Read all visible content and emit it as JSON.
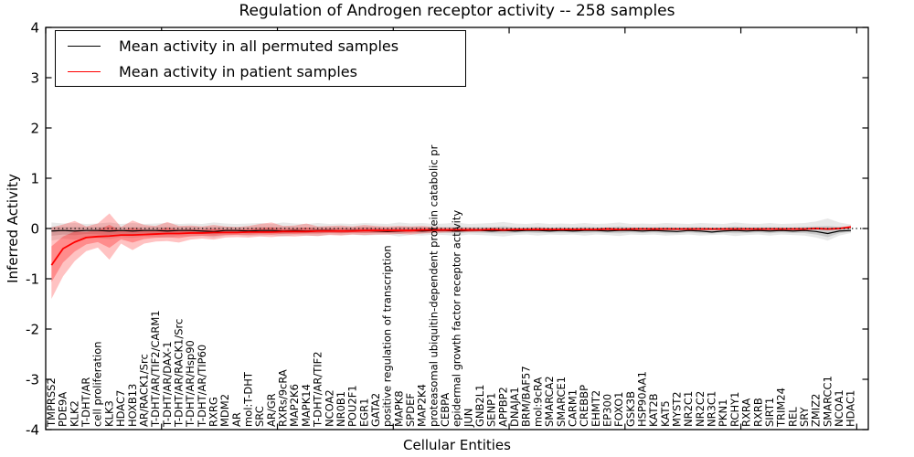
{
  "chart_data": {
    "type": "line",
    "title": "Regulation of Androgen receptor activity -- 258 samples",
    "xlabel": "Cellular Entities",
    "ylabel": "Inferred Activity",
    "ylim": [
      -4,
      4
    ],
    "xlim": [
      0,
      71
    ],
    "y_ticks": [
      -4,
      -3,
      -2,
      -1,
      0,
      1,
      2,
      3,
      4
    ],
    "x_major_tick_step": 10,
    "grid": false,
    "zero_reference_line": 0,
    "legend_position": "upper left",
    "categories": [
      "TMPRSS2",
      "PDE9A",
      "KLK2",
      "T-DHT/AR",
      "cell proliferation",
      "KLK3",
      "HDAC7",
      "HOXB13",
      "AR/RACK1/Src",
      "T-DHT/AR/TIF2/CARM1",
      "T-DHT/AR/DAX-1",
      "T-DHT/AR/RACK1/Src",
      "T-DHT/AR/Hsp90",
      "T-DHT/AR/TIP60",
      "RXRG",
      "MDM2",
      "AR",
      "mol:T-DHT",
      "SRC",
      "AR/GR",
      "RXRs/9cRA",
      "MAP2K6",
      "MAPK14",
      "T-DHT/AR/TIF2",
      "NCOA2",
      "NR0B1",
      "POU2F1",
      "EGR1",
      "GATA2",
      "positive regulation of transcription",
      "MAPK8",
      "SPDEF",
      "MAP2K4",
      "proteasomal ubiquitin-dependent protein catabolic pr",
      "CEBPA",
      "epidermal growth factor receptor activity",
      "JUN",
      "GNB2L1",
      "SENP1",
      "APPBP2",
      "DNAJA1",
      "BRM/BAF57",
      "mol:9cRA",
      "SMARCA2",
      "SMARCE1",
      "CARM1",
      "CREBBP",
      "EHMT2",
      "EP300",
      "FOXO1",
      "GSK3B",
      "HSP90AA1",
      "KAT2B",
      "KAT5",
      "MYST2",
      "NR2C1",
      "NR2C2",
      "NR3C1",
      "PKN1",
      "RCHY1",
      "RXRA",
      "RXRB",
      "SIRT1",
      "TRIM24",
      "REL",
      "SRY",
      "ZMIZ2",
      "SMARCC1",
      "NCOA1",
      "HDAC1"
    ],
    "series": [
      {
        "name": "Mean activity in all permuted samples",
        "color": "#000000",
        "band_color_rgb": "0,0,0",
        "band_alpha": 0.09,
        "line_width": 1.2,
        "mean": [
          -0.05,
          -0.04,
          -0.05,
          -0.04,
          -0.04,
          -0.05,
          -0.04,
          -0.05,
          -0.04,
          -0.04,
          -0.05,
          -0.04,
          -0.04,
          -0.05,
          -0.06,
          -0.04,
          -0.04,
          -0.05,
          -0.04,
          -0.04,
          -0.05,
          -0.04,
          -0.05,
          -0.04,
          -0.04,
          -0.05,
          -0.04,
          -0.04,
          -0.05,
          -0.06,
          -0.05,
          -0.04,
          -0.05,
          -0.04,
          -0.04,
          -0.05,
          -0.04,
          -0.04,
          -0.05,
          -0.04,
          -0.05,
          -0.04,
          -0.04,
          -0.05,
          -0.04,
          -0.05,
          -0.04,
          -0.04,
          -0.05,
          -0.04,
          -0.04,
          -0.05,
          -0.04,
          -0.05,
          -0.06,
          -0.04,
          -0.05,
          -0.07,
          -0.05,
          -0.04,
          -0.05,
          -0.04,
          -0.05,
          -0.04,
          -0.05,
          -0.04,
          -0.06,
          -0.1,
          -0.05,
          -0.04
        ],
        "band_hi": [
          0.12,
          0.1,
          0.11,
          0.09,
          0.1,
          0.12,
          0.09,
          0.11,
          0.09,
          0.1,
          0.11,
          0.09,
          0.1,
          0.09,
          0.12,
          0.1,
          0.09,
          0.1,
          0.11,
          0.09,
          0.12,
          0.1,
          0.09,
          0.11,
          0.09,
          0.1,
          0.09,
          0.11,
          0.1,
          0.09,
          0.12,
          0.1,
          0.11,
          0.09,
          0.1,
          0.12,
          0.09,
          0.1,
          0.11,
          0.13,
          0.1,
          0.09,
          0.11,
          0.09,
          0.1,
          0.09,
          0.11,
          0.09,
          0.1,
          0.12,
          0.09,
          0.1,
          0.09,
          0.11,
          0.1,
          0.09,
          0.11,
          0.1,
          0.09,
          0.12,
          0.1,
          0.09,
          0.11,
          0.09,
          0.1,
          0.11,
          0.14,
          0.2,
          0.12,
          0.08
        ],
        "band_lo": [
          -0.24,
          -0.2,
          -0.22,
          -0.18,
          -0.19,
          -0.21,
          -0.17,
          -0.19,
          -0.16,
          -0.17,
          -0.18,
          -0.15,
          -0.16,
          -0.15,
          -0.18,
          -0.14,
          -0.13,
          -0.15,
          -0.14,
          -0.13,
          -0.16,
          -0.13,
          -0.14,
          -0.15,
          -0.12,
          -0.13,
          -0.12,
          -0.14,
          -0.13,
          -0.12,
          -0.16,
          -0.13,
          -0.14,
          -0.12,
          -0.13,
          -0.15,
          -0.12,
          -0.13,
          -0.14,
          -0.16,
          -0.13,
          -0.12,
          -0.14,
          -0.12,
          -0.13,
          -0.12,
          -0.14,
          -0.12,
          -0.13,
          -0.15,
          -0.12,
          -0.13,
          -0.12,
          -0.14,
          -0.13,
          -0.12,
          -0.14,
          -0.13,
          -0.12,
          -0.15,
          -0.13,
          -0.12,
          -0.14,
          -0.12,
          -0.13,
          -0.14,
          -0.18,
          -0.24,
          -0.14,
          -0.09
        ]
      },
      {
        "name": "Mean activity in patient samples",
        "color": "#ff0000",
        "band_color_rgb": "255,0,0",
        "band_alpha": 0.24,
        "line_width": 1.8,
        "mean": [
          -0.73,
          -0.4,
          -0.27,
          -0.18,
          -0.16,
          -0.15,
          -0.13,
          -0.13,
          -0.12,
          -0.11,
          -0.1,
          -0.1,
          -0.09,
          -0.09,
          -0.08,
          -0.08,
          -0.08,
          -0.07,
          -0.07,
          -0.07,
          -0.06,
          -0.06,
          -0.06,
          -0.05,
          -0.05,
          -0.05,
          -0.05,
          -0.04,
          -0.04,
          -0.04,
          -0.04,
          -0.04,
          -0.03,
          -0.03,
          -0.03,
          -0.03,
          -0.03,
          -0.03,
          -0.02,
          -0.03,
          -0.02,
          -0.02,
          -0.02,
          -0.02,
          -0.02,
          -0.02,
          -0.02,
          -0.02,
          -0.01,
          -0.02,
          -0.01,
          -0.01,
          -0.01,
          -0.01,
          -0.01,
          -0.01,
          -0.01,
          -0.01,
          -0.01,
          -0.01,
          -0.01,
          -0.01,
          -0.01,
          -0.01,
          -0.01,
          -0.01,
          0.0,
          -0.01,
          0.0,
          0.03
        ],
        "band_hi": [
          0.02,
          0.08,
          0.15,
          0.04,
          0.1,
          0.3,
          0.03,
          0.16,
          0.07,
          0.05,
          0.13,
          0.05,
          0.06,
          0.04,
          0.07,
          0.04,
          0.03,
          0.05,
          0.09,
          0.12,
          0.05,
          0.06,
          0.1,
          0.04,
          0.05,
          0.06,
          0.04,
          0.07,
          0.05,
          0.04,
          0.05,
          0.04,
          0.05,
          0.03,
          0.02,
          0.02,
          0.02,
          0.01,
          0.02,
          0.01,
          0.01,
          0.01,
          0.02,
          0.01,
          0.01,
          0.01,
          0.01,
          0.01,
          0.02,
          0.01,
          0.01,
          0.01,
          0.01,
          0.01,
          0.01,
          0.01,
          0.01,
          0.01,
          0.01,
          0.01,
          0.01,
          0.01,
          0.01,
          0.01,
          0.01,
          0.01,
          0.02,
          0.01,
          0.02,
          0.06
        ],
        "band_lo": [
          -1.4,
          -0.95,
          -0.65,
          -0.45,
          -0.38,
          -0.62,
          -0.3,
          -0.43,
          -0.3,
          -0.26,
          -0.25,
          -0.28,
          -0.22,
          -0.2,
          -0.22,
          -0.18,
          -0.17,
          -0.18,
          -0.16,
          -0.17,
          -0.15,
          -0.16,
          -0.14,
          -0.15,
          -0.13,
          -0.14,
          -0.12,
          -0.13,
          -0.12,
          -0.12,
          -0.11,
          -0.12,
          -0.1,
          -0.09,
          -0.08,
          -0.07,
          -0.07,
          -0.06,
          -0.06,
          -0.06,
          -0.05,
          -0.05,
          -0.05,
          -0.05,
          -0.04,
          -0.05,
          -0.04,
          -0.04,
          -0.04,
          -0.04,
          -0.04,
          -0.03,
          -0.04,
          -0.03,
          -0.03,
          -0.03,
          -0.03,
          -0.03,
          -0.03,
          -0.03,
          -0.03,
          -0.03,
          -0.03,
          -0.03,
          -0.03,
          -0.03,
          -0.02,
          -0.03,
          -0.02,
          0.0
        ]
      }
    ]
  }
}
